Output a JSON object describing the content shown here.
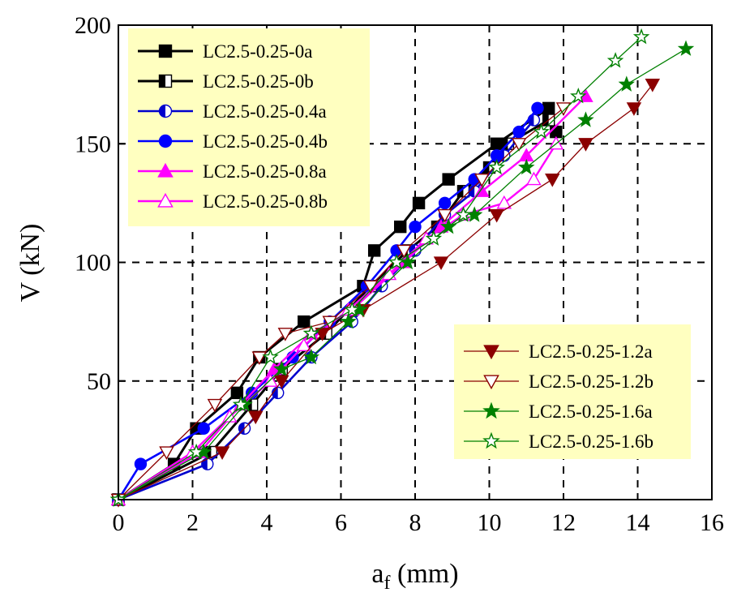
{
  "chart_data": {
    "type": "line",
    "xlabel": "a",
    "xlabel_sub": "f",
    "xlabel_unit": " (mm)",
    "ylabel": "V (kN)",
    "xlim": [
      0,
      16
    ],
    "ylim": [
      0,
      200
    ],
    "xticks": [
      0,
      2,
      4,
      6,
      8,
      10,
      12,
      14,
      16
    ],
    "yticks": [
      50,
      100,
      150,
      200
    ],
    "grid": "dashed",
    "legends": [
      {
        "placement": "top-left",
        "entries": [
          "LC2.5-0.25-0a",
          "LC2.5-0.25-0b",
          "LC2.5-0.25-0.4a",
          "LC2.5-0.25-0.4b",
          "LC2.5-0.25-0.8a",
          "LC2.5-0.25-0.8b"
        ]
      },
      {
        "placement": "bottom-right",
        "entries": [
          "LC2.5-0.25-1.2a",
          "LC2.5-0.25-1.2b",
          "LC2.5-0.25-1.6a",
          "LC2.5-0.25-1.6b"
        ]
      }
    ],
    "series": [
      {
        "name": "LC2.5-0.25-0a",
        "color": "#000000",
        "marker": "square",
        "fill": "full",
        "x": [
          0,
          1.5,
          2.1,
          3.2,
          3.8,
          5.0,
          6.6,
          6.9,
          7.6,
          8.1,
          8.9,
          10.2,
          11.6,
          11.8
        ],
        "y": [
          0,
          15,
          30,
          45,
          60,
          75,
          90,
          105,
          115,
          125,
          135,
          150,
          165,
          155
        ]
      },
      {
        "name": "LC2.5-0.25-0b",
        "color": "#000000",
        "marker": "square",
        "fill": "left",
        "x": [
          0,
          2.5,
          3.6,
          4.4,
          5.6,
          6.8,
          7.8,
          8.6,
          9.3,
          10.0,
          10.5,
          11.6
        ],
        "y": [
          0,
          20,
          40,
          55,
          70,
          90,
          105,
          115,
          130,
          140,
          150,
          160
        ]
      },
      {
        "name": "LC2.5-0.25-0.4a",
        "color": "#0000cd",
        "marker": "circle",
        "fill": "left",
        "x": [
          0,
          2.4,
          3.4,
          4.3,
          5.2,
          6.3,
          7.1,
          8.0,
          8.8,
          9.6,
          10.4,
          11.2
        ],
        "y": [
          0,
          15,
          30,
          45,
          60,
          75,
          90,
          105,
          120,
          130,
          145,
          160
        ]
      },
      {
        "name": "LC2.5-0.25-0.4b",
        "color": "#0000ff",
        "marker": "circle",
        "fill": "full",
        "x": [
          0,
          0.6,
          2.3,
          3.6,
          4.7,
          5.7,
          6.7,
          7.5,
          8.0,
          8.8,
          9.6,
          10.2,
          10.8,
          11.3
        ],
        "y": [
          0,
          15,
          30,
          45,
          60,
          75,
          90,
          105,
          115,
          125,
          135,
          145,
          155,
          165
        ]
      },
      {
        "name": "LC2.5-0.25-0.8a",
        "color": "#ff00ff",
        "marker": "triangle-up",
        "fill": "full",
        "x": [
          0,
          2.2,
          3.3,
          4.2,
          5.2,
          6.3,
          7.7,
          8.7,
          9.8,
          11.0,
          12.6
        ],
        "y": [
          0,
          20,
          40,
          55,
          70,
          80,
          100,
          115,
          130,
          145,
          170
        ]
      },
      {
        "name": "LC2.5-0.25-0.8b",
        "color": "#ff00ff",
        "marker": "triangle-up",
        "fill": "open",
        "x": [
          0,
          2.0,
          3.0,
          4.1,
          5.0,
          6.2,
          7.3,
          8.3,
          9.3,
          10.4,
          11.2,
          11.8
        ],
        "y": [
          0,
          20,
          35,
          50,
          65,
          80,
          95,
          110,
          120,
          125,
          135,
          150
        ]
      },
      {
        "name": "LC2.5-0.25-1.2a",
        "color": "#8b0000",
        "marker": "triangle-down",
        "fill": "full",
        "x": [
          0,
          2.8,
          3.7,
          4.4,
          5.5,
          6.6,
          8.7,
          10.2,
          11.7,
          12.6,
          13.9,
          14.4
        ],
        "y": [
          0,
          20,
          35,
          50,
          70,
          80,
          100,
          120,
          135,
          150,
          165,
          175
        ]
      },
      {
        "name": "LC2.5-0.25-1.2b",
        "color": "#8b0000",
        "marker": "triangle-down",
        "fill": "open",
        "x": [
          0,
          1.3,
          2.6,
          3.8,
          4.5,
          5.7,
          6.8,
          7.7,
          8.8,
          9.8,
          10.8,
          12.0
        ],
        "y": [
          0,
          20,
          40,
          60,
          70,
          75,
          90,
          105,
          120,
          135,
          150,
          165
        ]
      },
      {
        "name": "LC2.5-0.25-1.6a",
        "color": "#008000",
        "marker": "star",
        "fill": "full",
        "x": [
          0,
          2.3,
          3.4,
          4.4,
          5.2,
          6.2,
          6.5,
          7.8,
          8.9,
          9.6,
          11.0,
          12.6,
          13.7,
          15.3
        ],
        "y": [
          0,
          20,
          40,
          55,
          60,
          75,
          80,
          100,
          115,
          120,
          140,
          160,
          175,
          190
        ]
      },
      {
        "name": "LC2.5-0.25-1.6b",
        "color": "#008000",
        "marker": "star",
        "fill": "open",
        "x": [
          0,
          2.1,
          3.3,
          4.1,
          5.2,
          6.3,
          7.5,
          8.5,
          9.3,
          10.2,
          11.4,
          12.4,
          13.4,
          14.1
        ],
        "y": [
          0,
          20,
          40,
          60,
          70,
          80,
          100,
          110,
          120,
          140,
          155,
          170,
          185,
          195
        ]
      }
    ]
  }
}
